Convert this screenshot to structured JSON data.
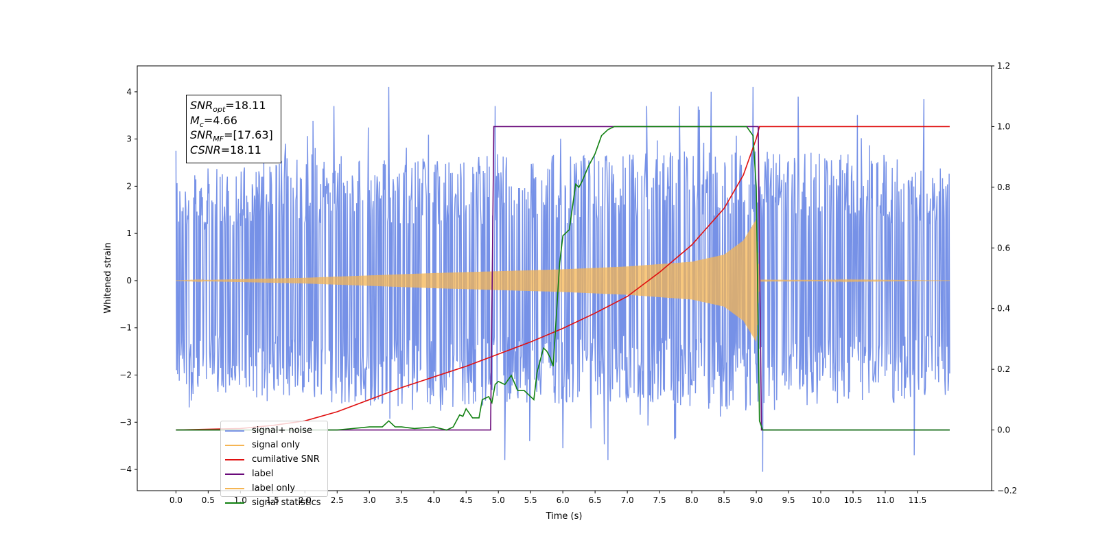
{
  "chart_data": {
    "type": "line",
    "title": "",
    "xlabel": "Time (s)",
    "ylabel": "Whitened strain",
    "xlim": [
      -0.6,
      12.65
    ],
    "ylim": [
      -4.45,
      4.55
    ],
    "y2lim": [
      -0.2,
      1.2
    ],
    "x_ticks": [
      0.0,
      0.5,
      1.0,
      1.5,
      2.0,
      2.5,
      3.0,
      3.5,
      4.0,
      4.5,
      5.0,
      5.5,
      6.0,
      6.5,
      7.0,
      7.5,
      8.0,
      8.5,
      9.0,
      9.5,
      10.0,
      10.5,
      11.0,
      11.5
    ],
    "x_tick_labels": [
      "0.0",
      "0.5",
      "1.0",
      "1.5",
      "2.0",
      "2.5",
      "3.0",
      "3.5",
      "4.0",
      "4.5",
      "5.0",
      "5.5",
      "6.0",
      "6.5",
      "7.0",
      "7.5",
      "8.0",
      "8.5",
      "9.0",
      "9.5",
      "10.0",
      "10.5",
      "11.0",
      "11.5"
    ],
    "y_ticks": [
      -4,
      -3,
      -2,
      -1,
      0,
      1,
      2,
      3,
      4
    ],
    "y_tick_labels": [
      "−4",
      "−3",
      "−2",
      "−1",
      "0",
      "1",
      "2",
      "3",
      "4"
    ],
    "y2_ticks": [
      -0.2,
      0.0,
      0.2,
      0.4,
      0.6,
      0.8,
      1.0,
      1.2
    ],
    "y2_tick_labels": [
      "−0.2",
      "0.0",
      "0.2",
      "0.4",
      "0.6",
      "0.8",
      "1.0",
      "1.2"
    ],
    "grid": false,
    "legend_position": "lower-left",
    "series": [
      {
        "name": "signal+ noise",
        "axis": "left",
        "color": "#6f8be6",
        "kind": "noise-band",
        "x_range": [
          0.0,
          12.0
        ],
        "band": [
          [
            0.0,
            -2.3,
            2.2
          ],
          [
            0.5,
            -2.5,
            2.4
          ],
          [
            1.0,
            -2.5,
            2.5
          ],
          [
            2.0,
            -2.6,
            2.7
          ],
          [
            3.0,
            -2.7,
            2.6
          ],
          [
            4.0,
            -2.8,
            2.6
          ],
          [
            5.0,
            -2.6,
            2.7
          ],
          [
            6.0,
            -2.6,
            2.7
          ],
          [
            7.0,
            -2.6,
            2.7
          ],
          [
            8.0,
            -2.7,
            2.8
          ],
          [
            9.0,
            -2.8,
            2.8
          ],
          [
            10.0,
            -2.6,
            2.7
          ],
          [
            11.0,
            -2.6,
            2.7
          ],
          [
            12.0,
            -2.5,
            2.5
          ]
        ],
        "peaks": [
          [
            0.0,
            2.75
          ],
          [
            1.7,
            2.9
          ],
          [
            2.45,
            3.7
          ],
          [
            3.3,
            4.1
          ],
          [
            4.95,
            3.7
          ],
          [
            5.1,
            -3.8
          ],
          [
            6.0,
            -3.55
          ],
          [
            6.7,
            -3.8
          ],
          [
            7.3,
            3.7
          ],
          [
            8.3,
            4.0
          ],
          [
            8.95,
            4.1
          ],
          [
            9.1,
            -4.05
          ],
          [
            9.65,
            3.9
          ],
          [
            11.6,
            3.85
          ],
          [
            11.45,
            -3.7
          ]
        ]
      },
      {
        "name": "signal only",
        "axis": "left",
        "color": "#f5b553",
        "kind": "chirp",
        "envelope": [
          [
            0.0,
            0.0
          ],
          [
            2.0,
            0.06
          ],
          [
            4.0,
            0.16
          ],
          [
            6.0,
            0.24
          ],
          [
            7.0,
            0.3
          ],
          [
            8.0,
            0.4
          ],
          [
            8.5,
            0.55
          ],
          [
            8.8,
            0.85
          ],
          [
            9.0,
            1.3
          ],
          [
            9.05,
            0.02
          ],
          [
            12.0,
            0.0
          ]
        ]
      },
      {
        "name": "cumilative SNR",
        "axis": "right",
        "color": "#e01010",
        "x": [
          0.0,
          1.0,
          1.5,
          2.0,
          2.5,
          3.0,
          3.5,
          4.0,
          4.5,
          5.0,
          5.5,
          6.0,
          6.5,
          7.0,
          7.5,
          8.0,
          8.5,
          8.8,
          9.0,
          9.05,
          12.0
        ],
        "values": [
          0.0,
          0.005,
          0.015,
          0.03,
          0.06,
          0.1,
          0.14,
          0.175,
          0.21,
          0.25,
          0.29,
          0.335,
          0.385,
          0.44,
          0.52,
          0.61,
          0.73,
          0.84,
          0.96,
          1.0,
          1.0
        ]
      },
      {
        "name": "label",
        "axis": "right",
        "color": "#6a0a7a",
        "x": [
          0.0,
          4.88,
          4.93,
          9.03,
          9.08,
          12.0
        ],
        "values": [
          0.0,
          0.0,
          1.0,
          1.0,
          0.0,
          0.0
        ]
      },
      {
        "name": "label only",
        "axis": "right",
        "color": "#f5b553",
        "x": [],
        "values": []
      },
      {
        "name": "signal statistics",
        "axis": "right",
        "color": "#108010",
        "x": [
          0.0,
          2.5,
          3.0,
          3.2,
          3.3,
          3.4,
          3.5,
          3.7,
          4.0,
          4.2,
          4.3,
          4.4,
          4.45,
          4.5,
          4.6,
          4.7,
          4.75,
          4.85,
          4.9,
          4.95,
          5.0,
          5.1,
          5.2,
          5.3,
          5.4,
          5.5,
          5.55,
          5.6,
          5.7,
          5.75,
          5.8,
          5.85,
          5.95,
          6.0,
          6.1,
          6.2,
          6.25,
          6.3,
          6.4,
          6.5,
          6.6,
          6.7,
          6.8,
          7.0,
          7.5,
          8.0,
          8.5,
          8.85,
          8.95,
          9.0,
          9.05,
          9.1,
          12.0
        ],
        "values": [
          0.0,
          0.0,
          0.01,
          0.01,
          0.03,
          0.01,
          0.01,
          0.005,
          0.01,
          0.0,
          0.01,
          0.05,
          0.045,
          0.07,
          0.04,
          0.04,
          0.1,
          0.11,
          0.09,
          0.15,
          0.16,
          0.15,
          0.18,
          0.13,
          0.13,
          0.11,
          0.1,
          0.19,
          0.27,
          0.26,
          0.24,
          0.21,
          0.55,
          0.64,
          0.66,
          0.81,
          0.8,
          0.82,
          0.87,
          0.91,
          0.97,
          0.99,
          1.0,
          1.0,
          1.0,
          1.0,
          1.0,
          1.0,
          0.97,
          0.8,
          0.03,
          0.0,
          0.0
        ]
      }
    ]
  },
  "annotation": {
    "snr_opt": {
      "sym": "SNR",
      "sub": "opt",
      "value": "=18.11"
    },
    "mc": {
      "sym": "M",
      "sub": "c",
      "value": "=4.66"
    },
    "snr_mf": {
      "sym": "SNR",
      "sub": "MF",
      "value": "=[17.63]"
    },
    "csnr": {
      "sym": "CSNR",
      "value": "=18.11"
    }
  },
  "legend": [
    {
      "label": "signal+ noise",
      "color": "#6f8be6"
    },
    {
      "label": "signal only",
      "color": "#f5b553"
    },
    {
      "label": "cumilative SNR",
      "color": "#e01010"
    },
    {
      "label": "label",
      "color": "#6a0a7a"
    },
    {
      "label": "label only",
      "color": "#f5b553"
    },
    {
      "label": "signal statistics",
      "color": "#108010"
    }
  ]
}
